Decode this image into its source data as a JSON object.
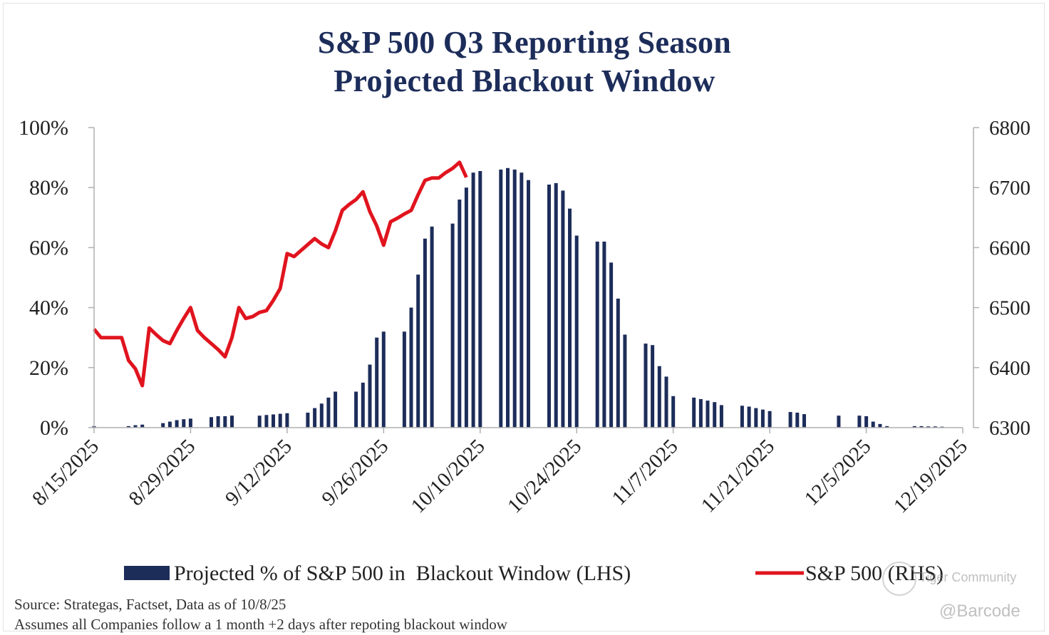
{
  "title": {
    "line1": "S&P 500 Q3 Reporting Season",
    "line2": "Projected Blackout Window"
  },
  "source": "Source: Strategas, Factset, Data as of 10/8/25",
  "note": "Assumes all Companies follow a 1 month +2 days after repoting blackout window",
  "watermark": {
    "community": "Tiger Community",
    "handle": "@Barcode"
  },
  "colors": {
    "bars": "#1d2d5a",
    "line": "#e0141e",
    "text": "#1d2d5a",
    "axis": "#b0b0b0"
  },
  "chart_data": {
    "type": "bar",
    "x_type": "date",
    "x_range": [
      "8/15/2025",
      "12/19/2025"
    ],
    "x_ticks": [
      "8/15/2025",
      "8/29/2025",
      "9/12/2025",
      "9/26/2025",
      "10/10/2025",
      "10/24/2025",
      "11/7/2025",
      "11/21/2025",
      "12/5/2025",
      "12/19/2025"
    ],
    "y_left": {
      "ylim": [
        0,
        100
      ],
      "ticks": [
        "0%",
        "20%",
        "40%",
        "60%",
        "80%",
        "100%"
      ]
    },
    "y_right": {
      "ylim": [
        6300,
        6800
      ],
      "ticks": [
        "6300",
        "6400",
        "6500",
        "6600",
        "6700",
        "6800"
      ]
    },
    "grid": false,
    "legend": "bottom",
    "series": [
      {
        "name": "Projected % of S&P 500 in  Blackout Window (LHS)",
        "kind": "bar",
        "axis": "left",
        "points": [
          [
            "8/15/2025",
            0.5
          ],
          [
            "8/20/2025",
            0.5
          ],
          [
            "8/21/2025",
            0.8
          ],
          [
            "8/22/2025",
            1.0
          ],
          [
            "8/25/2025",
            1.5
          ],
          [
            "8/26/2025",
            2.0
          ],
          [
            "8/27/2025",
            2.5
          ],
          [
            "8/28/2025",
            2.8
          ],
          [
            "8/29/2025",
            3.0
          ],
          [
            "9/1/2025",
            3.5
          ],
          [
            "9/2/2025",
            3.8
          ],
          [
            "9/3/2025",
            3.8
          ],
          [
            "9/4/2025",
            4.0
          ],
          [
            "9/8/2025",
            4.0
          ],
          [
            "9/9/2025",
            4.2
          ],
          [
            "9/10/2025",
            4.4
          ],
          [
            "9/11/2025",
            4.6
          ],
          [
            "9/12/2025",
            4.8
          ],
          [
            "9/15/2025",
            5.0
          ],
          [
            "9/16/2025",
            6.5
          ],
          [
            "9/17/2025",
            8.0
          ],
          [
            "9/18/2025",
            10.0
          ],
          [
            "9/19/2025",
            12.0
          ],
          [
            "9/22/2025",
            12.0
          ],
          [
            "9/23/2025",
            15.0
          ],
          [
            "9/24/2025",
            21.0
          ],
          [
            "9/25/2025",
            30.0
          ],
          [
            "9/26/2025",
            32.0
          ],
          [
            "9/29/2025",
            32.0
          ],
          [
            "9/30/2025",
            40.0
          ],
          [
            "10/1/2025",
            51.0
          ],
          [
            "10/2/2025",
            63.0
          ],
          [
            "10/3/2025",
            67.0
          ],
          [
            "10/6/2025",
            68.0
          ],
          [
            "10/7/2025",
            76.0
          ],
          [
            "10/8/2025",
            80.0
          ],
          [
            "10/9/2025",
            85.0
          ],
          [
            "10/10/2025",
            85.5
          ],
          [
            "10/13/2025",
            86.0
          ],
          [
            "10/14/2025",
            86.5
          ],
          [
            "10/15/2025",
            86.0
          ],
          [
            "10/16/2025",
            85.0
          ],
          [
            "10/17/2025",
            82.5
          ],
          [
            "10/20/2025",
            81.0
          ],
          [
            "10/21/2025",
            81.5
          ],
          [
            "10/22/2025",
            79.0
          ],
          [
            "10/23/2025",
            73.0
          ],
          [
            "10/24/2025",
            64.0
          ],
          [
            "10/27/2025",
            62.0
          ],
          [
            "10/28/2025",
            62.0
          ],
          [
            "10/29/2025",
            55.0
          ],
          [
            "10/30/2025",
            43.0
          ],
          [
            "10/31/2025",
            31.0
          ],
          [
            "11/3/2025",
            28.0
          ],
          [
            "11/4/2025",
            27.5
          ],
          [
            "11/5/2025",
            20.5
          ],
          [
            "11/6/2025",
            17.0
          ],
          [
            "11/7/2025",
            10.5
          ],
          [
            "11/10/2025",
            10.0
          ],
          [
            "11/11/2025",
            9.5
          ],
          [
            "11/12/2025",
            9.0
          ],
          [
            "11/13/2025",
            8.5
          ],
          [
            "11/14/2025",
            7.5
          ],
          [
            "11/17/2025",
            7.3
          ],
          [
            "11/18/2025",
            7.0
          ],
          [
            "11/19/2025",
            6.5
          ],
          [
            "11/20/2025",
            6.0
          ],
          [
            "11/21/2025",
            5.5
          ],
          [
            "11/24/2025",
            5.2
          ],
          [
            "11/25/2025",
            5.0
          ],
          [
            "11/26/2025",
            4.5
          ],
          [
            "12/1/2025",
            4.0
          ],
          [
            "12/4/2025",
            4.0
          ],
          [
            "12/5/2025",
            3.8
          ],
          [
            "12/6/2025",
            2.0
          ],
          [
            "12/7/2025",
            1.2
          ],
          [
            "12/8/2025",
            0.5
          ],
          [
            "12/12/2025",
            0.5
          ],
          [
            "12/13/2025",
            0.5
          ],
          [
            "12/14/2025",
            0.4
          ],
          [
            "12/15/2025",
            0.4
          ],
          [
            "12/16/2025",
            0.3
          ]
        ]
      },
      {
        "name": "S&P 500 (RHS)",
        "kind": "line",
        "axis": "right",
        "points": [
          [
            "8/15/2025",
            6464
          ],
          [
            "8/16/2025",
            6450
          ],
          [
            "8/17/2025",
            6450
          ],
          [
            "8/18/2025",
            6450
          ],
          [
            "8/19/2025",
            6450
          ],
          [
            "8/20/2025",
            6412
          ],
          [
            "8/21/2025",
            6398
          ],
          [
            "8/22/2025",
            6370
          ],
          [
            "8/23/2025",
            6466
          ],
          [
            "8/24/2025",
            6455
          ],
          [
            "8/25/2025",
            6445
          ],
          [
            "8/26/2025",
            6440
          ],
          [
            "8/27/2025",
            6462
          ],
          [
            "8/28/2025",
            6482
          ],
          [
            "8/29/2025",
            6500
          ],
          [
            "8/30/2025",
            6462
          ],
          [
            "8/31/2025",
            6450
          ],
          [
            "9/1/2025",
            6440
          ],
          [
            "9/2/2025",
            6430
          ],
          [
            "9/3/2025",
            6418
          ],
          [
            "9/4/2025",
            6450
          ],
          [
            "9/5/2025",
            6500
          ],
          [
            "9/6/2025",
            6482
          ],
          [
            "9/7/2025",
            6485
          ],
          [
            "9/8/2025",
            6492
          ],
          [
            "9/9/2025",
            6495
          ],
          [
            "9/10/2025",
            6512
          ],
          [
            "9/11/2025",
            6532
          ],
          [
            "9/12/2025",
            6590
          ],
          [
            "9/13/2025",
            6585
          ],
          [
            "9/14/2025",
            6595
          ],
          [
            "9/15/2025",
            6605
          ],
          [
            "9/16/2025",
            6615
          ],
          [
            "9/17/2025",
            6606
          ],
          [
            "9/18/2025",
            6600
          ],
          [
            "9/19/2025",
            6628
          ],
          [
            "9/20/2025",
            6662
          ],
          [
            "9/21/2025",
            6672
          ],
          [
            "9/22/2025",
            6680
          ],
          [
            "9/23/2025",
            6693
          ],
          [
            "9/24/2025",
            6660
          ],
          [
            "9/25/2025",
            6636
          ],
          [
            "9/26/2025",
            6604
          ],
          [
            "9/27/2025",
            6643
          ],
          [
            "9/28/2025",
            6649
          ],
          [
            "9/29/2025",
            6656
          ],
          [
            "9/30/2025",
            6662
          ],
          [
            "10/1/2025",
            6688
          ],
          [
            "10/2/2025",
            6712
          ],
          [
            "10/3/2025",
            6716
          ],
          [
            "10/4/2025",
            6716
          ],
          [
            "10/5/2025",
            6725
          ],
          [
            "10/6/2025",
            6732
          ],
          [
            "10/7/2025",
            6742
          ],
          [
            "10/8/2025",
            6717
          ]
        ]
      }
    ]
  }
}
